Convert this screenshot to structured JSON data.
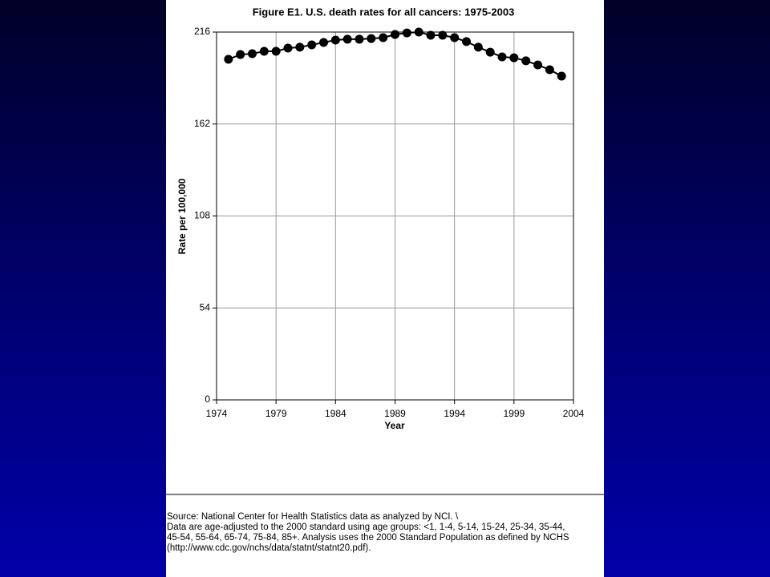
{
  "chart_data": {
    "type": "line",
    "title": "Figure E1. U.S. death rates for all cancers: 1975-2003",
    "xlabel": "Year",
    "ylabel": "Rate per 100,000",
    "x": [
      1975,
      1976,
      1977,
      1978,
      1979,
      1980,
      1981,
      1982,
      1983,
      1984,
      1985,
      1986,
      1987,
      1988,
      1989,
      1990,
      1991,
      1992,
      1993,
      1994,
      1995,
      1996,
      1997,
      1998,
      1999,
      2000,
      2001,
      2002,
      2003
    ],
    "series": [
      {
        "color": "#000000",
        "values": [
          200,
          202.8,
          203.3,
          204.7,
          204.7,
          206.6,
          207.1,
          208.5,
          209.9,
          211.3,
          211.8,
          211.8,
          212.2,
          212.7,
          214.6,
          215.5,
          216,
          214.1,
          214.1,
          212.7,
          210.4,
          207.1,
          204.2,
          201.4,
          200.9,
          199.1,
          196.7,
          193.9,
          190.1
        ]
      }
    ],
    "xlim": [
      1974,
      2004
    ],
    "xticks": [
      1974,
      1979,
      1984,
      1989,
      1994,
      1999,
      2004
    ],
    "ylim": [
      0,
      216
    ],
    "yticks": [
      0,
      54,
      108,
      162,
      216
    ],
    "grid": true,
    "notes": [
      "Source: National Center for Health Statistics data as analyzed by NCI. \\",
      "Data are age-adjusted to the 2000 standard using age groups: <1, 1-4, 5-14, 15-24, 25-34, 35-44,",
      "45-54, 55-64, 65-74, 75-84, 85+. Analysis uses the 2000 Standard Population as defined by NCHS",
      "(http://www.cdc.gov/nchs/data/statnt/statnt20.pdf)."
    ]
  }
}
